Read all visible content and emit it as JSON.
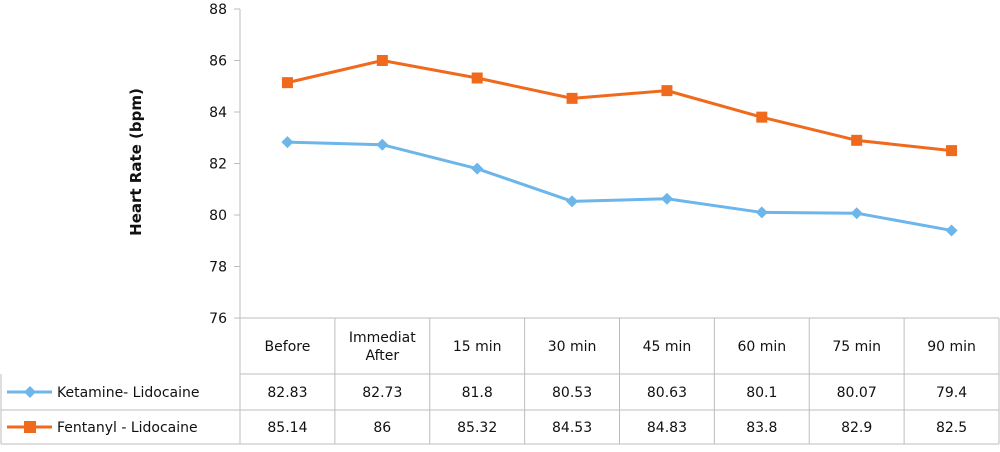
{
  "chart_data": {
    "type": "line",
    "title": "",
    "xlabel": "",
    "ylabel": "Heart Rate (bpm)",
    "ylim": [
      76,
      88
    ],
    "yticks": [
      "76",
      "78",
      "80",
      "82",
      "84",
      "86",
      "88"
    ],
    "grid": false,
    "legend": "data-table-left",
    "categories": [
      [
        "Before"
      ],
      [
        "Immediat",
        "After"
      ],
      [
        "15 min"
      ],
      [
        "30 min"
      ],
      [
        "45 min"
      ],
      [
        "60 min"
      ],
      [
        "75 min"
      ],
      [
        "90 min"
      ]
    ],
    "series": [
      {
        "name": "Ketamine- Lidocaine",
        "color": "#6cb6ea",
        "marker": "diamond",
        "values": [
          82.83,
          82.73,
          81.8,
          80.53,
          80.63,
          80.1,
          80.07,
          79.4
        ],
        "labels": [
          "82.83",
          "82.73",
          "81.8",
          "80.53",
          "80.63",
          "80.1",
          "80.07",
          "79.4"
        ]
      },
      {
        "name": "Fentanyl - Lidocaine",
        "color": "#ef6a1c",
        "marker": "square",
        "values": [
          85.14,
          86,
          85.32,
          84.53,
          84.83,
          83.8,
          82.9,
          82.5
        ],
        "labels": [
          "85.14",
          "86",
          "85.32",
          "84.53",
          "84.83",
          "83.8",
          "82.9",
          "82.5"
        ]
      }
    ]
  }
}
